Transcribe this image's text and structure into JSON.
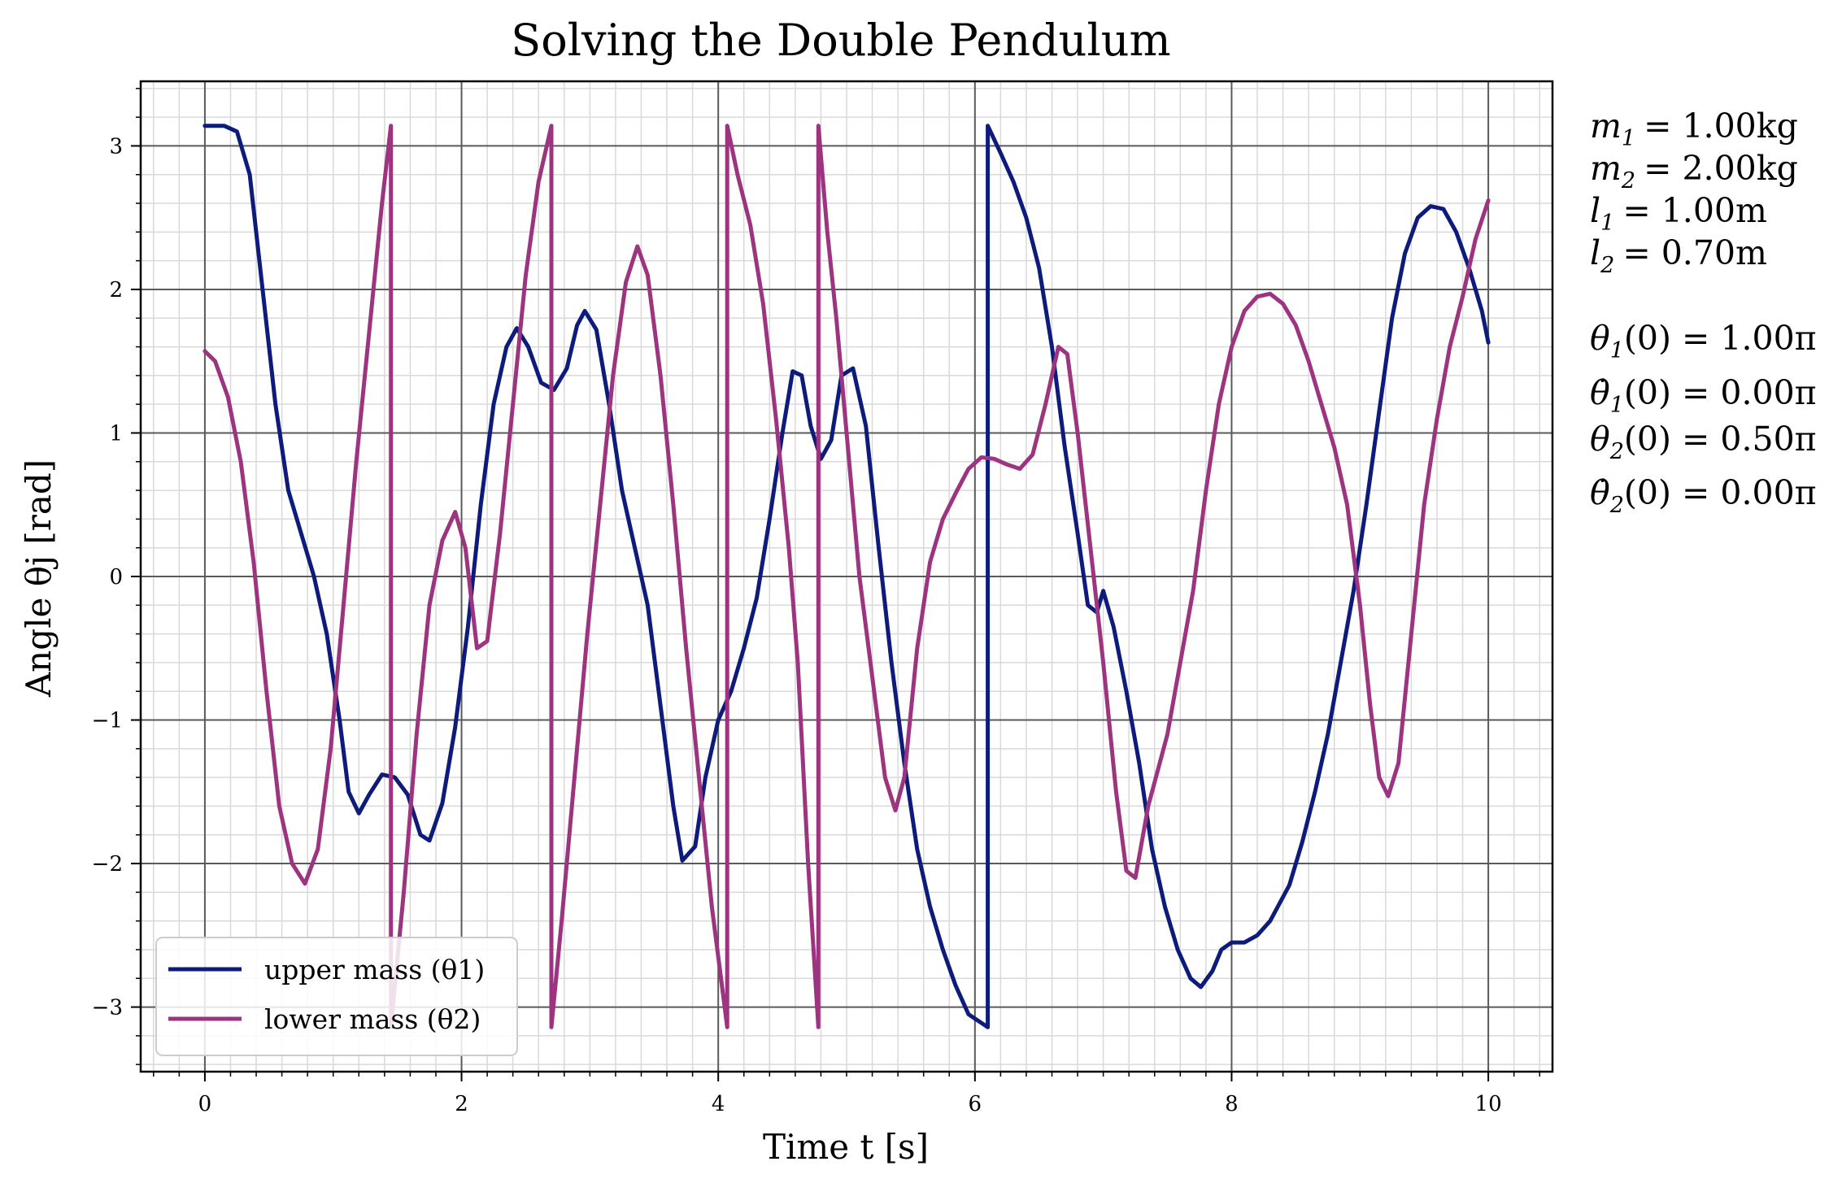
{
  "chart_data": {
    "type": "line",
    "title": "Solving the Double Pendulum",
    "xlabel": "Time t [s]",
    "ylabel": "Angle θj [rad]",
    "xlim": [
      -0.5,
      10.5
    ],
    "ylim": [
      -3.45,
      3.45
    ],
    "xticks": [
      0,
      2,
      4,
      6,
      8,
      10
    ],
    "xtick_labels": [
      "0",
      "2",
      "4",
      "6",
      "8",
      "10"
    ],
    "yticks": [
      -3,
      -2,
      -1,
      0,
      1,
      2,
      3
    ],
    "ytick_labels": [
      "−3",
      "−2",
      "−1",
      "0",
      "1",
      "2",
      "3"
    ],
    "grid": true,
    "minor_grid": true,
    "legend_position": "lower-left",
    "series": [
      {
        "name": "upper mass (θ1)",
        "color": "#0d1b7a",
        "points": [
          [
            0,
            3.14
          ],
          [
            0.15,
            3.14
          ],
          [
            0.25,
            3.1
          ],
          [
            0.35,
            2.8
          ],
          [
            0.45,
            2.0
          ],
          [
            0.55,
            1.2
          ],
          [
            0.65,
            0.6
          ],
          [
            0.75,
            0.3
          ],
          [
            0.85,
            0.0
          ],
          [
            0.95,
            -0.4
          ],
          [
            1.05,
            -1.0
          ],
          [
            1.12,
            -1.5
          ],
          [
            1.2,
            -1.65
          ],
          [
            1.28,
            -1.52
          ],
          [
            1.38,
            -1.38
          ],
          [
            1.48,
            -1.4
          ],
          [
            1.58,
            -1.52
          ],
          [
            1.68,
            -1.8
          ],
          [
            1.75,
            -1.84
          ],
          [
            1.85,
            -1.58
          ],
          [
            1.95,
            -1.05
          ],
          [
            2.05,
            -0.35
          ],
          [
            2.15,
            0.5
          ],
          [
            2.25,
            1.2
          ],
          [
            2.35,
            1.6
          ],
          [
            2.43,
            1.73
          ],
          [
            2.52,
            1.6
          ],
          [
            2.62,
            1.35
          ],
          [
            2.72,
            1.3
          ],
          [
            2.82,
            1.45
          ],
          [
            2.9,
            1.75
          ],
          [
            2.96,
            1.85
          ],
          [
            3.05,
            1.72
          ],
          [
            3.15,
            1.2
          ],
          [
            3.25,
            0.6
          ],
          [
            3.35,
            0.2
          ],
          [
            3.45,
            -0.2
          ],
          [
            3.55,
            -0.9
          ],
          [
            3.65,
            -1.6
          ],
          [
            3.72,
            -1.98
          ],
          [
            3.82,
            -1.88
          ],
          [
            3.9,
            -1.4
          ],
          [
            4.0,
            -1.0
          ],
          [
            4.1,
            -0.8
          ],
          [
            4.2,
            -0.5
          ],
          [
            4.3,
            -0.15
          ],
          [
            4.4,
            0.4
          ],
          [
            4.5,
            1.0
          ],
          [
            4.58,
            1.43
          ],
          [
            4.65,
            1.4
          ],
          [
            4.72,
            1.05
          ],
          [
            4.8,
            0.82
          ],
          [
            4.88,
            0.95
          ],
          [
            4.96,
            1.4
          ],
          [
            5.05,
            1.45
          ],
          [
            5.15,
            1.05
          ],
          [
            5.25,
            0.2
          ],
          [
            5.35,
            -0.6
          ],
          [
            5.45,
            -1.3
          ],
          [
            5.55,
            -1.9
          ],
          [
            5.65,
            -2.3
          ],
          [
            5.75,
            -2.6
          ],
          [
            5.85,
            -2.85
          ],
          [
            5.95,
            -3.05
          ],
          [
            6.1,
            -3.14
          ],
          [
            6.1,
            3.14
          ],
          [
            6.2,
            2.95
          ],
          [
            6.3,
            2.75
          ],
          [
            6.4,
            2.5
          ],
          [
            6.5,
            2.15
          ],
          [
            6.6,
            1.6
          ],
          [
            6.7,
            0.9
          ],
          [
            6.8,
            0.3
          ],
          [
            6.88,
            -0.2
          ],
          [
            6.95,
            -0.25
          ],
          [
            7.0,
            -0.1
          ],
          [
            7.08,
            -0.35
          ],
          [
            7.18,
            -0.8
          ],
          [
            7.28,
            -1.3
          ],
          [
            7.38,
            -1.9
          ],
          [
            7.48,
            -2.3
          ],
          [
            7.58,
            -2.6
          ],
          [
            7.68,
            -2.8
          ],
          [
            7.76,
            -2.86
          ],
          [
            7.85,
            -2.75
          ],
          [
            7.92,
            -2.6
          ],
          [
            8.0,
            -2.55
          ],
          [
            8.1,
            -2.55
          ],
          [
            8.2,
            -2.5
          ],
          [
            8.3,
            -2.4
          ],
          [
            8.45,
            -2.15
          ],
          [
            8.55,
            -1.85
          ],
          [
            8.65,
            -1.5
          ],
          [
            8.75,
            -1.1
          ],
          [
            8.85,
            -0.6
          ],
          [
            8.95,
            -0.1
          ],
          [
            9.05,
            0.5
          ],
          [
            9.15,
            1.15
          ],
          [
            9.25,
            1.8
          ],
          [
            9.35,
            2.25
          ],
          [
            9.45,
            2.5
          ],
          [
            9.55,
            2.58
          ],
          [
            9.65,
            2.56
          ],
          [
            9.75,
            2.4
          ],
          [
            9.85,
            2.15
          ],
          [
            9.95,
            1.85
          ],
          [
            10.0,
            1.63
          ]
        ]
      },
      {
        "name": "lower mass (θ2)",
        "color": "#9c3480",
        "points": [
          [
            0,
            1.57
          ],
          [
            0.08,
            1.5
          ],
          [
            0.18,
            1.25
          ],
          [
            0.28,
            0.8
          ],
          [
            0.38,
            0.1
          ],
          [
            0.48,
            -0.8
          ],
          [
            0.58,
            -1.6
          ],
          [
            0.68,
            -2.0
          ],
          [
            0.78,
            -2.14
          ],
          [
            0.88,
            -1.9
          ],
          [
            0.98,
            -1.2
          ],
          [
            1.08,
            -0.2
          ],
          [
            1.18,
            0.8
          ],
          [
            1.28,
            1.7
          ],
          [
            1.38,
            2.6
          ],
          [
            1.45,
            3.14
          ],
          [
            1.45,
            -3.14
          ],
          [
            1.55,
            -2.2
          ],
          [
            1.65,
            -1.1
          ],
          [
            1.75,
            -0.2
          ],
          [
            1.85,
            0.25
          ],
          [
            1.95,
            0.45
          ],
          [
            2.03,
            0.2
          ],
          [
            2.12,
            -0.5
          ],
          [
            2.2,
            -0.45
          ],
          [
            2.3,
            0.3
          ],
          [
            2.4,
            1.2
          ],
          [
            2.5,
            2.1
          ],
          [
            2.6,
            2.75
          ],
          [
            2.7,
            3.14
          ],
          [
            2.7,
            -3.14
          ],
          [
            2.78,
            -2.4
          ],
          [
            2.88,
            -1.4
          ],
          [
            2.98,
            -0.4
          ],
          [
            3.08,
            0.5
          ],
          [
            3.18,
            1.4
          ],
          [
            3.28,
            2.05
          ],
          [
            3.37,
            2.3
          ],
          [
            3.45,
            2.1
          ],
          [
            3.55,
            1.4
          ],
          [
            3.65,
            0.5
          ],
          [
            3.75,
            -0.5
          ],
          [
            3.85,
            -1.4
          ],
          [
            3.95,
            -2.3
          ],
          [
            4.05,
            -3.0
          ],
          [
            4.07,
            -3.14
          ],
          [
            4.07,
            3.14
          ],
          [
            4.15,
            2.8
          ],
          [
            4.25,
            2.45
          ],
          [
            4.35,
            1.9
          ],
          [
            4.45,
            1.1
          ],
          [
            4.55,
            0.2
          ],
          [
            4.62,
            -0.6
          ],
          [
            4.7,
            -2.0
          ],
          [
            4.78,
            -3.14
          ],
          [
            4.78,
            3.14
          ],
          [
            4.85,
            2.4
          ],
          [
            4.92,
            1.8
          ],
          [
            5.0,
            1.0
          ],
          [
            5.1,
            0.0
          ],
          [
            5.2,
            -0.7
          ],
          [
            5.3,
            -1.4
          ],
          [
            5.38,
            -1.63
          ],
          [
            5.45,
            -1.4
          ],
          [
            5.55,
            -0.5
          ],
          [
            5.65,
            0.1
          ],
          [
            5.75,
            0.4
          ],
          [
            5.85,
            0.58
          ],
          [
            5.95,
            0.75
          ],
          [
            6.05,
            0.83
          ],
          [
            6.15,
            0.82
          ],
          [
            6.25,
            0.78
          ],
          [
            6.35,
            0.75
          ],
          [
            6.45,
            0.85
          ],
          [
            6.55,
            1.2
          ],
          [
            6.65,
            1.6
          ],
          [
            6.72,
            1.55
          ],
          [
            6.8,
            1.0
          ],
          [
            6.9,
            0.2
          ],
          [
            7.0,
            -0.6
          ],
          [
            7.1,
            -1.5
          ],
          [
            7.18,
            -2.05
          ],
          [
            7.25,
            -2.1
          ],
          [
            7.35,
            -1.6
          ],
          [
            7.5,
            -1.1
          ],
          [
            7.6,
            -0.6
          ],
          [
            7.7,
            -0.1
          ],
          [
            7.8,
            0.6
          ],
          [
            7.9,
            1.2
          ],
          [
            8.0,
            1.6
          ],
          [
            8.1,
            1.85
          ],
          [
            8.2,
            1.95
          ],
          [
            8.3,
            1.97
          ],
          [
            8.4,
            1.9
          ],
          [
            8.5,
            1.75
          ],
          [
            8.6,
            1.5
          ],
          [
            8.7,
            1.2
          ],
          [
            8.8,
            0.9
          ],
          [
            8.9,
            0.5
          ],
          [
            9.0,
            -0.2
          ],
          [
            9.08,
            -0.9
          ],
          [
            9.15,
            -1.4
          ],
          [
            9.22,
            -1.53
          ],
          [
            9.3,
            -1.3
          ],
          [
            9.4,
            -0.4
          ],
          [
            9.5,
            0.5
          ],
          [
            9.6,
            1.1
          ],
          [
            9.7,
            1.6
          ],
          [
            9.8,
            1.95
          ],
          [
            9.9,
            2.35
          ],
          [
            10.0,
            2.62
          ]
        ]
      }
    ]
  },
  "parameters": {
    "m1": {
      "symbol": "m",
      "sub": "1",
      "value": "= 1.00kg"
    },
    "m2": {
      "symbol": "m",
      "sub": "2",
      "value": "= 2.00kg"
    },
    "l1": {
      "symbol": "l",
      "sub": "1",
      "value": "= 1.00m"
    },
    "l2": {
      "symbol": "l",
      "sub": "2",
      "value": "= 0.70m"
    },
    "theta1_0": {
      "symbol": "θ",
      "sub": "1",
      "value": "(0) = 1.00π"
    },
    "dtheta1_0": {
      "symbol": "θ̇",
      "sub": "1",
      "value": "(0) = 0.00π"
    },
    "theta2_0": {
      "symbol": "θ",
      "sub": "2",
      "value": "(0) = 0.50π"
    },
    "dtheta2_0": {
      "symbol": "θ̇",
      "sub": "2",
      "value": "(0) = 0.00π"
    }
  }
}
